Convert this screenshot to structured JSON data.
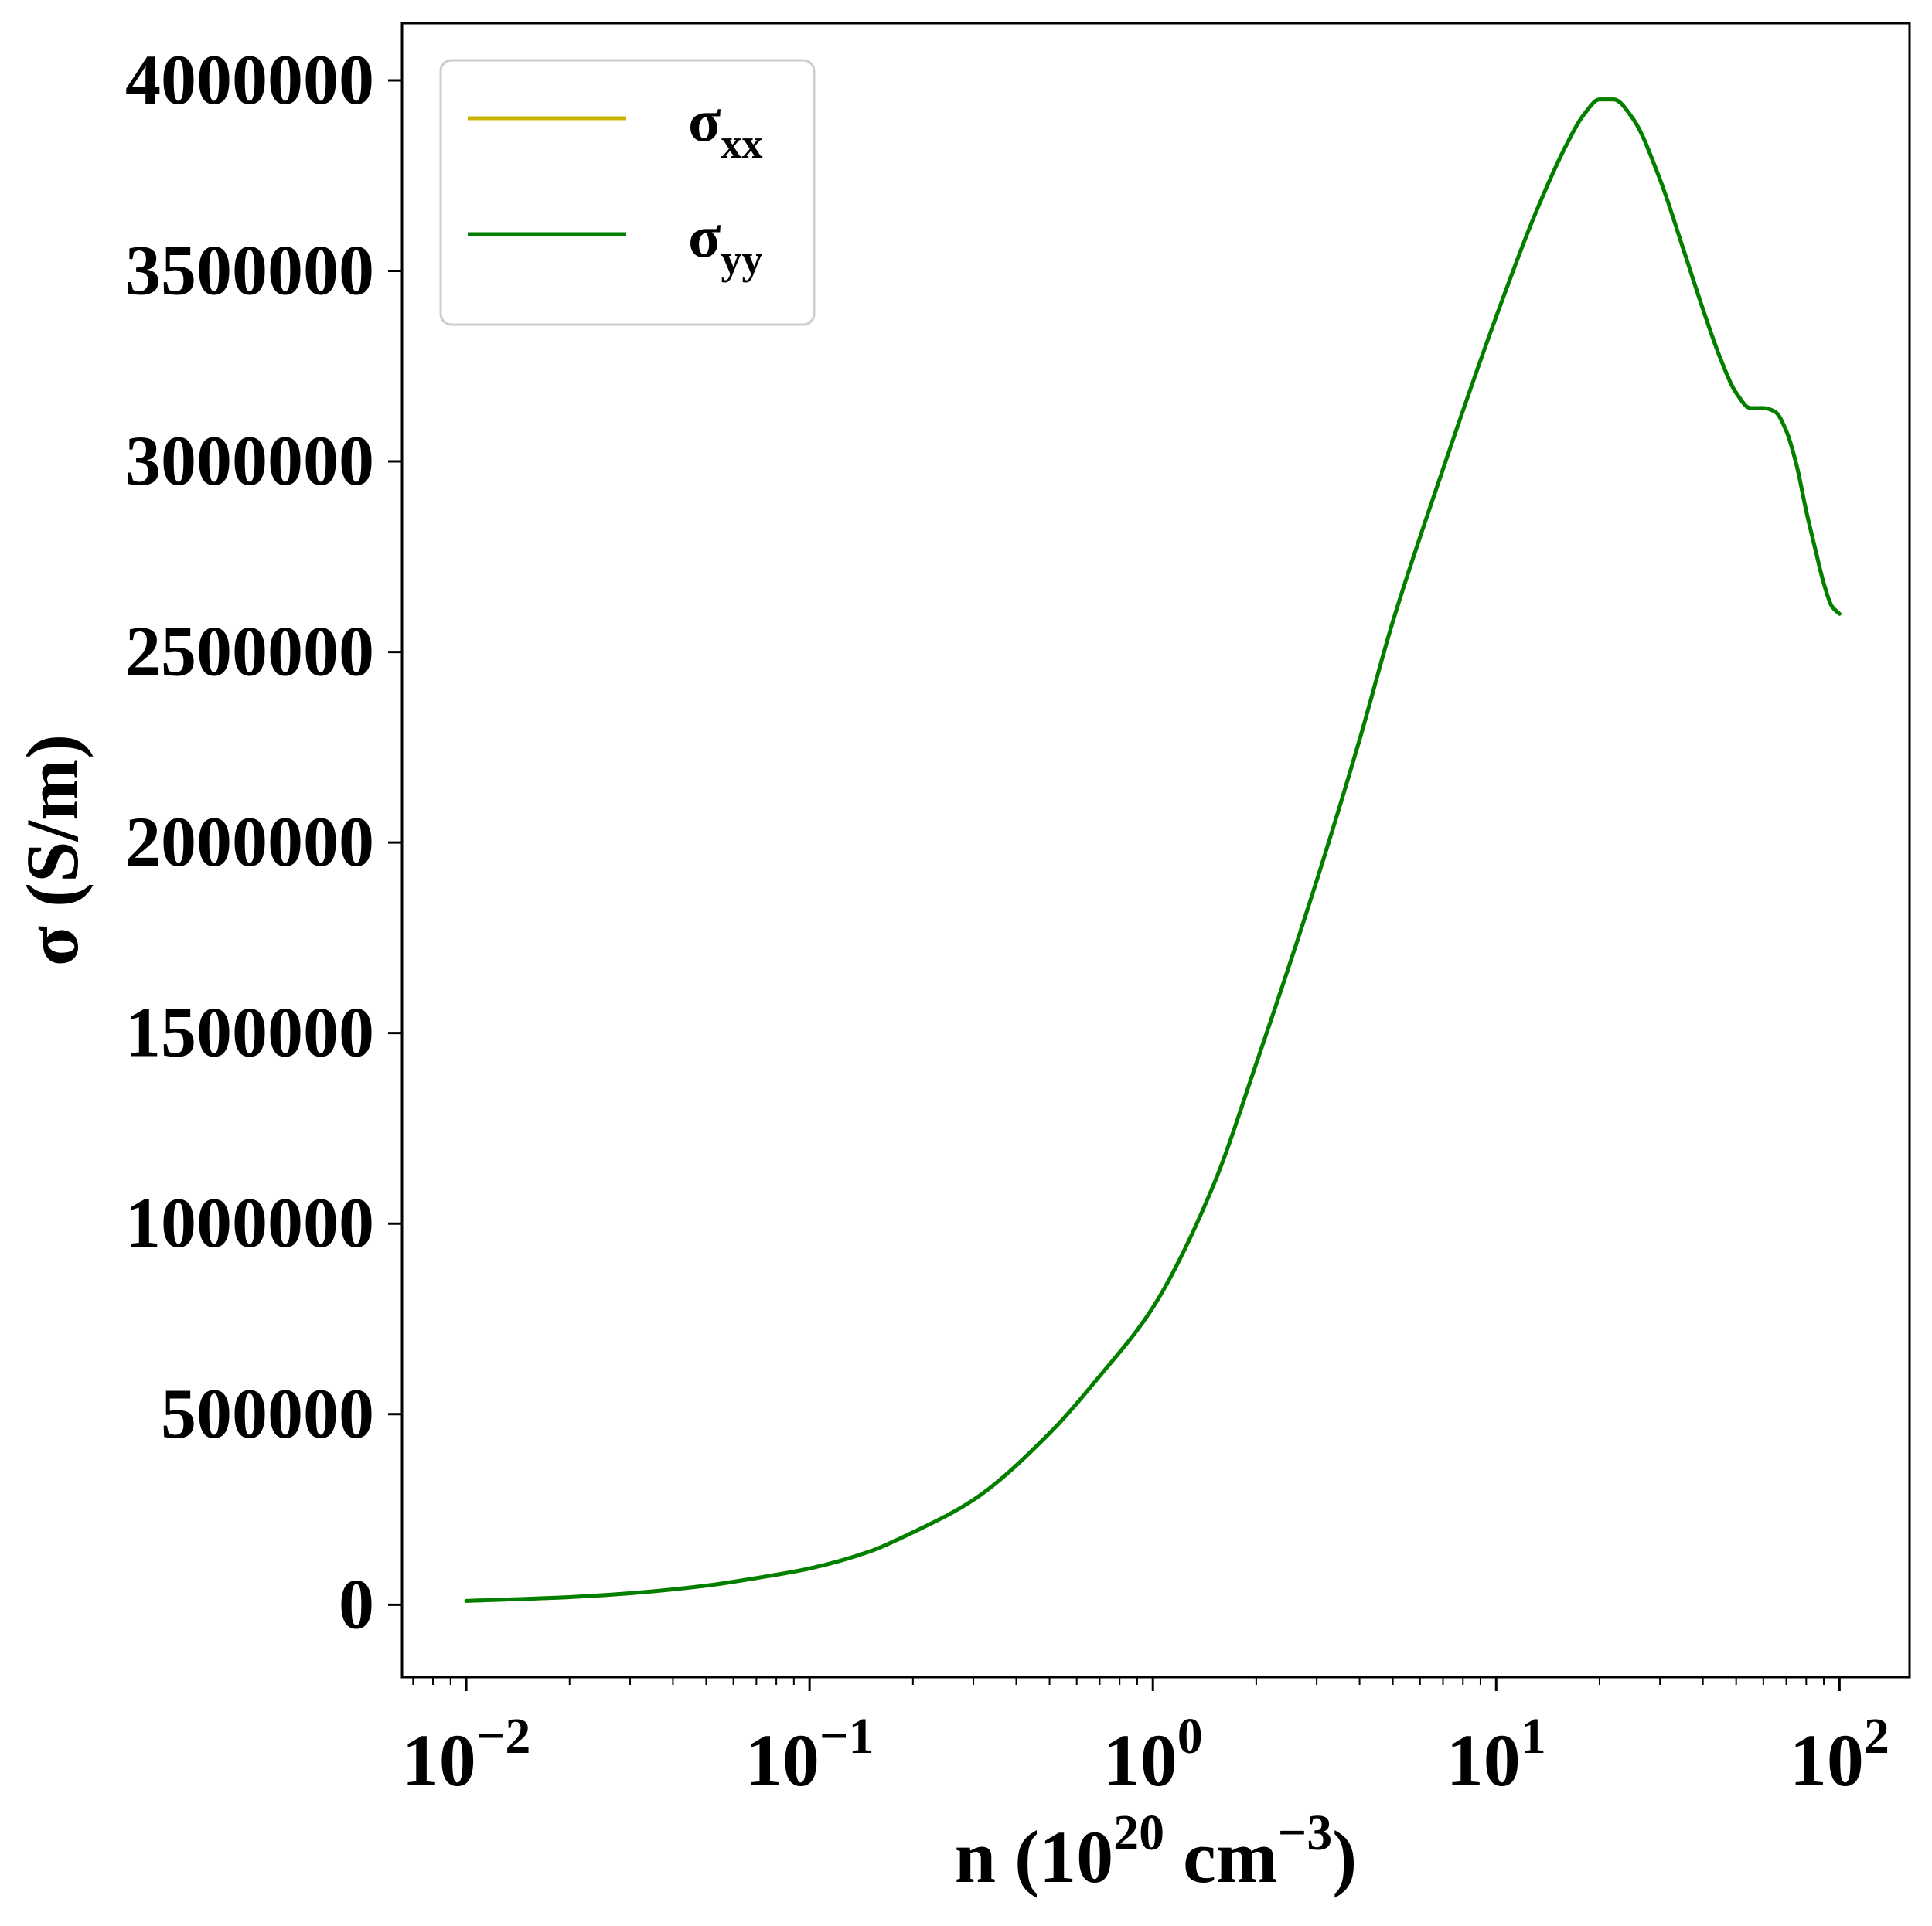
{
  "chart_data": {
    "type": "line",
    "xlabel": {
      "base": "n (10",
      "exp1": "20",
      "mid": " cm",
      "exp2": "−3",
      "tail": ")"
    },
    "ylabel": "σ (S/m)",
    "xscale": "log",
    "xlim": [
      0.0065,
      160
    ],
    "ylim": [
      -190000,
      4150000
    ],
    "x_ticks": [
      {
        "value": 0.01,
        "base": "10",
        "exp": "−2"
      },
      {
        "value": 0.1,
        "base": "10",
        "exp": "−1"
      },
      {
        "value": 1,
        "base": "10",
        "exp": "0"
      },
      {
        "value": 10,
        "base": "10",
        "exp": "1"
      },
      {
        "value": 100,
        "base": "10",
        "exp": "2"
      }
    ],
    "y_ticks": [
      {
        "value": 0,
        "label": "0"
      },
      {
        "value": 500000,
        "label": "500000"
      },
      {
        "value": 1000000,
        "label": "1000000"
      },
      {
        "value": 1500000,
        "label": "1500000"
      },
      {
        "value": 2000000,
        "label": "2000000"
      },
      {
        "value": 2500000,
        "label": "2500000"
      },
      {
        "value": 3000000,
        "label": "3000000"
      },
      {
        "value": 3500000,
        "label": "3500000"
      },
      {
        "value": 4000000,
        "label": "4000000"
      }
    ],
    "grid": false,
    "legend": {
      "placement": "top-left"
    },
    "x": [
      0.01,
      0.02,
      0.03,
      0.05,
      0.07,
      0.1,
      0.15,
      0.2,
      0.3,
      0.5,
      0.7,
      1.0,
      1.5,
      2.0,
      3.0,
      4.0,
      5.0,
      7.0,
      10.0,
      13.0,
      16.0,
      18.0,
      20.0,
      22.0,
      25.0,
      30.0,
      35.0,
      40.0,
      45.0,
      50.0,
      55.0,
      60.0,
      65.0,
      70.0,
      75.0,
      80.0,
      85.0,
      90.0,
      95.0,
      100.0
    ],
    "series": [
      {
        "name": "σxx",
        "name_base": "σ",
        "name_sub": "xx",
        "color": "#c8b400",
        "values": [
          10000,
          20000,
          30000,
          50000,
          70000,
          95000,
          140000,
          190000,
          275000,
          450000,
          600000,
          780000,
          1100000,
          1420000,
          1900000,
          2270000,
          2580000,
          2980000,
          3380000,
          3650000,
          3830000,
          3910000,
          3950000,
          3950000,
          3900000,
          3740000,
          3560000,
          3400000,
          3270000,
          3180000,
          3140000,
          3140000,
          3130000,
          3080000,
          2990000,
          2870000,
          2770000,
          2680000,
          2620000,
          2600000
        ]
      },
      {
        "name": "σyy",
        "name_base": "σ",
        "name_sub": "yy",
        "color": "#007f00",
        "values": [
          10000,
          20000,
          30000,
          50000,
          70000,
          95000,
          140000,
          190000,
          275000,
          450000,
          600000,
          780000,
          1100000,
          1420000,
          1900000,
          2270000,
          2580000,
          2980000,
          3380000,
          3650000,
          3830000,
          3910000,
          3950000,
          3950000,
          3900000,
          3740000,
          3560000,
          3400000,
          3270000,
          3180000,
          3140000,
          3140000,
          3130000,
          3080000,
          2990000,
          2870000,
          2770000,
          2680000,
          2620000,
          2600000
        ]
      }
    ]
  }
}
